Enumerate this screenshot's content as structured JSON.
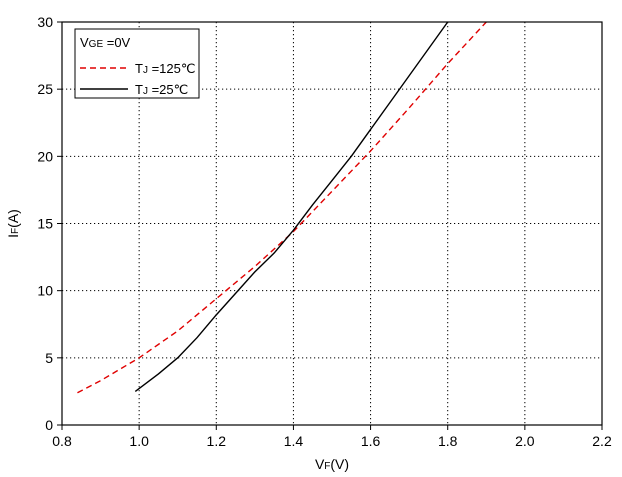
{
  "chart_data": {
    "type": "line",
    "xlabel": {
      "main": "V",
      "sub": "F",
      "rest": "(V)"
    },
    "ylabel": {
      "main": "I",
      "sub": "F",
      "rest": "(A)"
    },
    "xlim": [
      0.8,
      2.2
    ],
    "ylim": [
      0,
      30
    ],
    "x_ticks": [
      "0.8",
      "1.0",
      "1.2",
      "1.4",
      "1.6",
      "1.8",
      "2.0",
      "2.2"
    ],
    "y_ticks": [
      "0",
      "5",
      "10",
      "15",
      "20",
      "25",
      "30"
    ],
    "grid": "dotted",
    "legend_position": "top-left",
    "legend": {
      "header": {
        "main": "V",
        "sub": "GE",
        "rest": " =0V"
      },
      "entries": [
        {
          "main": "T",
          "sub": "J",
          "rest": " =125℃"
        },
        {
          "main": "T",
          "sub": "J",
          "rest": " =25℃"
        }
      ]
    },
    "series": [
      {
        "color": "#e00000",
        "dash": "dashed",
        "points": [
          [
            0.84,
            2.4
          ],
          [
            0.9,
            3.3
          ],
          [
            1.0,
            5.0
          ],
          [
            1.1,
            7.0
          ],
          [
            1.2,
            9.4
          ],
          [
            1.3,
            11.8
          ],
          [
            1.4,
            14.4
          ],
          [
            1.5,
            17.4
          ],
          [
            1.6,
            20.4
          ],
          [
            1.7,
            23.6
          ],
          [
            1.8,
            26.9
          ],
          [
            1.9,
            30.0
          ]
        ]
      },
      {
        "color": "#000000",
        "dash": "solid",
        "points": [
          [
            0.99,
            2.5
          ],
          [
            1.05,
            3.8
          ],
          [
            1.1,
            5.0
          ],
          [
            1.15,
            6.5
          ],
          [
            1.2,
            8.2
          ],
          [
            1.25,
            9.8
          ],
          [
            1.3,
            11.4
          ],
          [
            1.35,
            12.8
          ],
          [
            1.4,
            14.5
          ],
          [
            1.45,
            16.4
          ],
          [
            1.5,
            18.2
          ],
          [
            1.55,
            20.0
          ],
          [
            1.6,
            22.0
          ],
          [
            1.65,
            24.0
          ],
          [
            1.7,
            26.0
          ],
          [
            1.75,
            28.0
          ],
          [
            1.8,
            30.0
          ]
        ]
      }
    ]
  }
}
